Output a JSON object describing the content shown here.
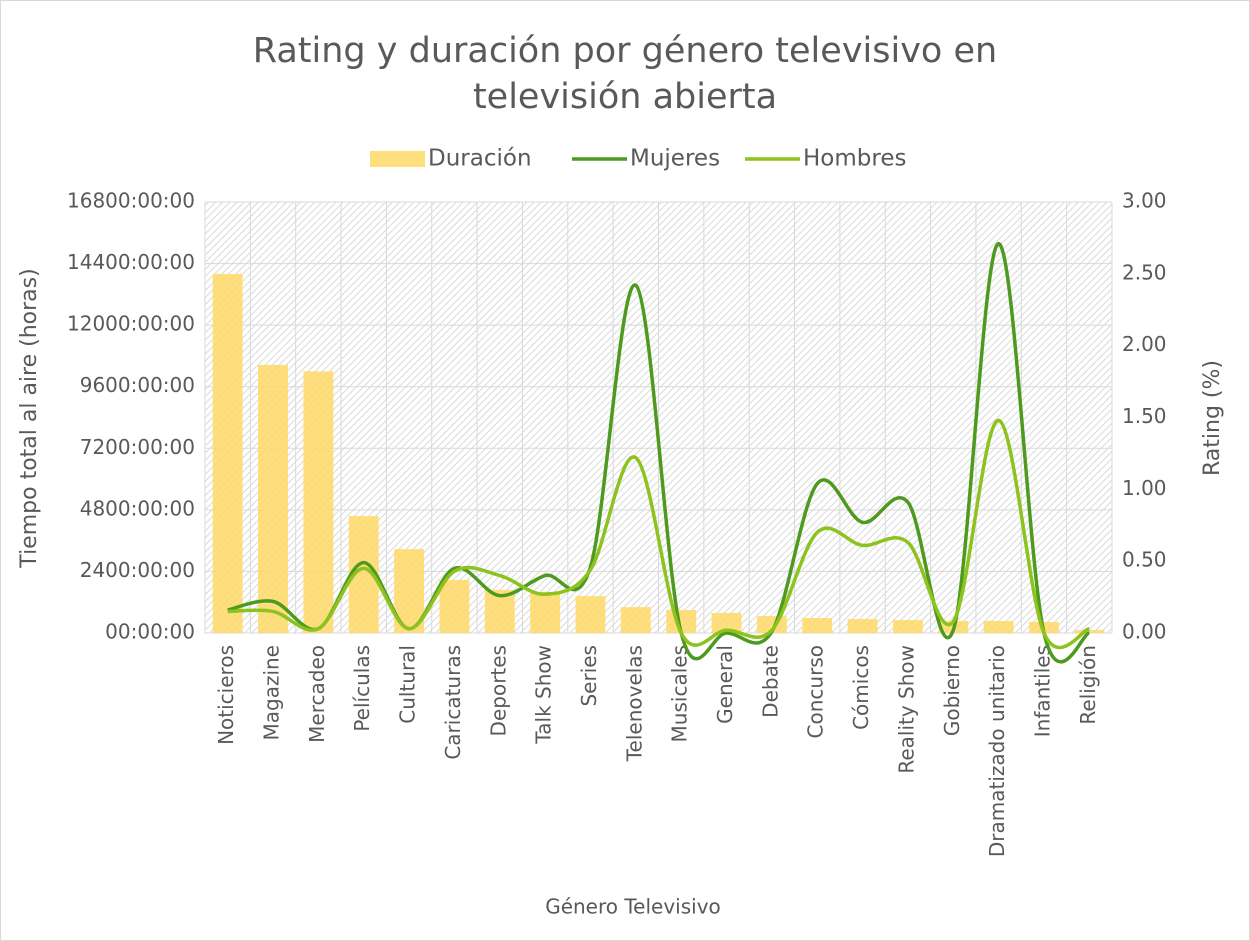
{
  "chart_data": {
    "type": "bar-line",
    "title": "Rating y duración por género televisivo en televisión abierta",
    "x_label": "Género Televisivo",
    "y_label": "Tiempo total al aire (horas)",
    "y2_label": "Rating (%)",
    "categories": [
      "Noticieros",
      "Magazine",
      "Mercadeo",
      "Películas",
      "Cultural",
      "Caricaturas",
      "Deportes",
      "Talk Show",
      "Series",
      "Telenovelas",
      "Musicales",
      "General",
      "Debate",
      "Concurso",
      "Cómicos",
      "Reality Show",
      "Gobierno",
      "Dramatizado unitario",
      "Infantiles",
      "Religión"
    ],
    "series": [
      {
        "name": "Duración",
        "type": "bar",
        "color": "#ffd966",
        "values": [
          14000,
          10450,
          10200,
          4560,
          3270,
          2070,
          1680,
          1600,
          1440,
          1010,
          900,
          780,
          660,
          585,
          545,
          505,
          470,
          470,
          430,
          120
        ]
      },
      {
        "name": "Mujeres",
        "type": "line",
        "axis": "y2",
        "color": "#4e9a1f",
        "values": [
          0.16,
          0.22,
          0.03,
          0.49,
          0.03,
          0.45,
          0.26,
          0.4,
          0.46,
          2.42,
          0,
          0,
          0.01,
          1.04,
          0.77,
          0.91,
          0.02,
          2.71,
          0,
          0
        ]
      },
      {
        "name": "Hombres",
        "type": "line",
        "axis": "y2",
        "color": "#8dc21f",
        "values": [
          0.15,
          0.15,
          0.03,
          0.45,
          0.03,
          0.43,
          0.4,
          0.27,
          0.44,
          1.22,
          0,
          0.02,
          0.02,
          0.7,
          0.61,
          0.63,
          0.08,
          1.48,
          0,
          0.03
        ]
      }
    ],
    "ylim": [
      0,
      16800
    ],
    "yticks": [
      {
        "value": 0,
        "label": "00:00:00"
      },
      {
        "value": 2400,
        "label": "2400:00:00"
      },
      {
        "value": 4800,
        "label": "4800:00:00"
      },
      {
        "value": 7200,
        "label": "7200:00:00"
      },
      {
        "value": 9600,
        "label": "9600:00:00"
      },
      {
        "value": 12000,
        "label": "12000:00:00"
      },
      {
        "value": 14400,
        "label": "14400:00:00"
      },
      {
        "value": 16800,
        "label": "16800:00:00"
      }
    ],
    "y2lim": [
      0,
      3
    ],
    "y2ticks": [
      {
        "value": 0,
        "label": "0.00"
      },
      {
        "value": 0.5,
        "label": "0.50"
      },
      {
        "value": 1,
        "label": "1.00"
      },
      {
        "value": 1.5,
        "label": "1.50"
      },
      {
        "value": 2,
        "label": "2.00"
      },
      {
        "value": 2.5,
        "label": "2.50"
      },
      {
        "value": 3,
        "label": "3.00"
      }
    ],
    "grid": true,
    "legend": "top"
  }
}
